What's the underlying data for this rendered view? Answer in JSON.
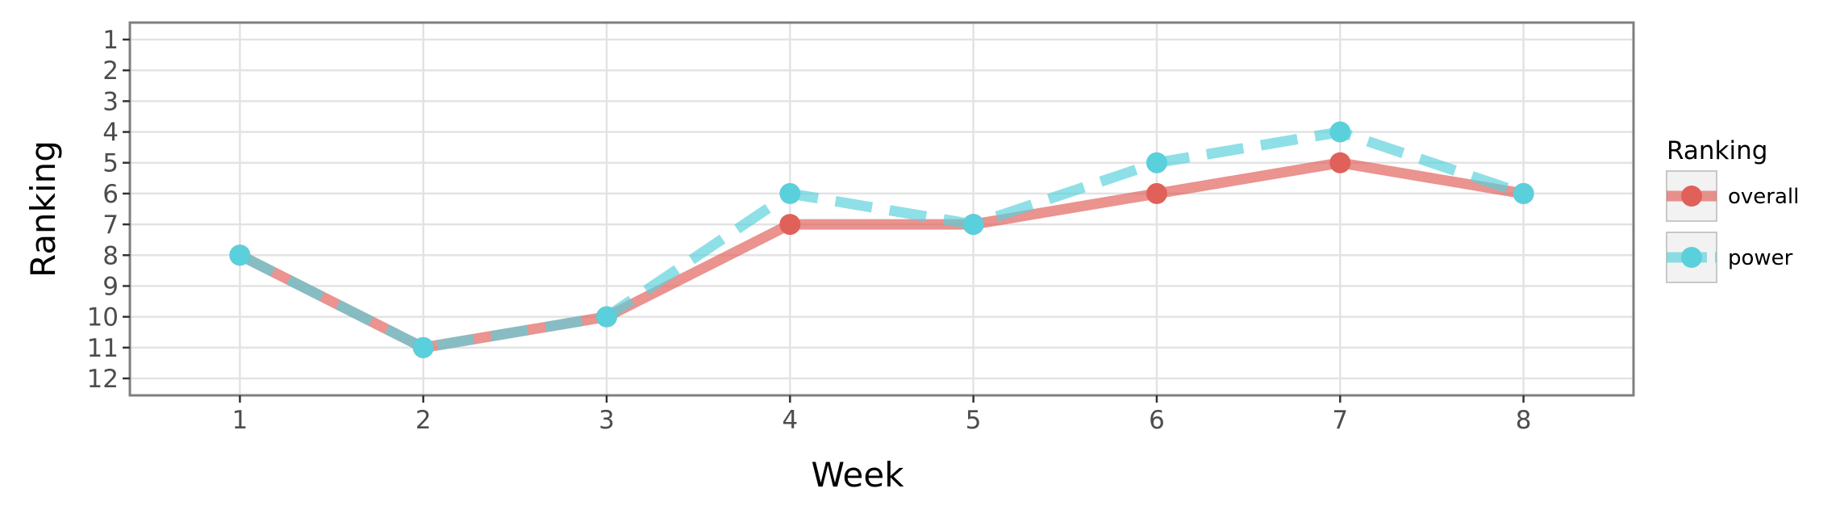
{
  "chart_data": {
    "type": "line",
    "xlabel": "Week",
    "ylabel": "Ranking",
    "x": [
      1,
      2,
      3,
      4,
      5,
      6,
      7,
      8
    ],
    "xlim": [
      0.4,
      8.6
    ],
    "ylim": [
      12.55,
      0.45
    ],
    "y_reversed": true,
    "x_ticks": [
      "1",
      "2",
      "3",
      "4",
      "5",
      "6",
      "7",
      "8"
    ],
    "y_ticks": [
      "1",
      "2",
      "3",
      "4",
      "5",
      "6",
      "7",
      "8",
      "9",
      "10",
      "11",
      "12"
    ],
    "grid": true,
    "legend": {
      "title": "Ranking",
      "position": "right"
    },
    "series": [
      {
        "name": "overall",
        "values": [
          8,
          11,
          10,
          7,
          7,
          6,
          5,
          6
        ],
        "color": "#E0605A",
        "line_style": "solid"
      },
      {
        "name": "power",
        "values": [
          8,
          11,
          10,
          6,
          7,
          5,
          4,
          6
        ],
        "color": "#5AD0DC",
        "line_style": "dashed"
      }
    ]
  }
}
